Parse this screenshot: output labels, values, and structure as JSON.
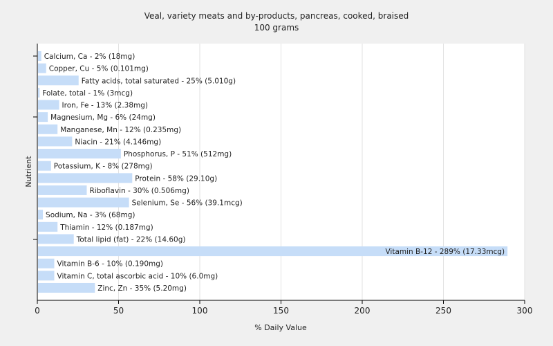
{
  "chart_data": {
    "type": "bar",
    "orientation": "horizontal",
    "title": "Veal, variety meats and by-products, pancreas, cooked, braised",
    "subtitle": "100 grams",
    "xlabel": "% Daily Value",
    "ylabel": "Nutrient",
    "xlim": [
      0,
      300
    ],
    "xticks": [
      0,
      50,
      100,
      150,
      200,
      250,
      300
    ],
    "grid": true,
    "legend": "none",
    "bar_color": "#c6ddf8",
    "categories": [
      "Calcium, Ca - 2% (18mg)",
      "Copper, Cu - 5% (0.101mg)",
      "Fatty acids, total saturated - 25% (5.010g)",
      "Folate, total - 1% (3mcg)",
      "Iron, Fe - 13% (2.38mg)",
      "Magnesium, Mg - 6% (24mg)",
      "Manganese, Mn - 12% (0.235mg)",
      "Niacin - 21% (4.146mg)",
      "Phosphorus, P - 51% (512mg)",
      "Potassium, K - 8% (278mg)",
      "Protein - 58% (29.10g)",
      "Riboflavin - 30% (0.506mg)",
      "Selenium, Se - 56% (39.1mcg)",
      "Sodium, Na - 3% (68mg)",
      "Thiamin - 12% (0.187mg)",
      "Total lipid (fat) - 22% (14.60g)",
      "Vitamin B-12 - 289% (17.33mcg)",
      "Vitamin B-6 - 10% (0.190mg)",
      "Vitamin C, total ascorbic acid - 10% (6.0mg)",
      "Zinc, Zn - 35% (5.20mg)"
    ],
    "values": [
      2,
      5,
      25,
      1,
      13,
      6,
      12,
      21,
      51,
      8,
      58,
      30,
      56,
      3,
      12,
      22,
      289,
      10,
      10,
      35
    ]
  }
}
